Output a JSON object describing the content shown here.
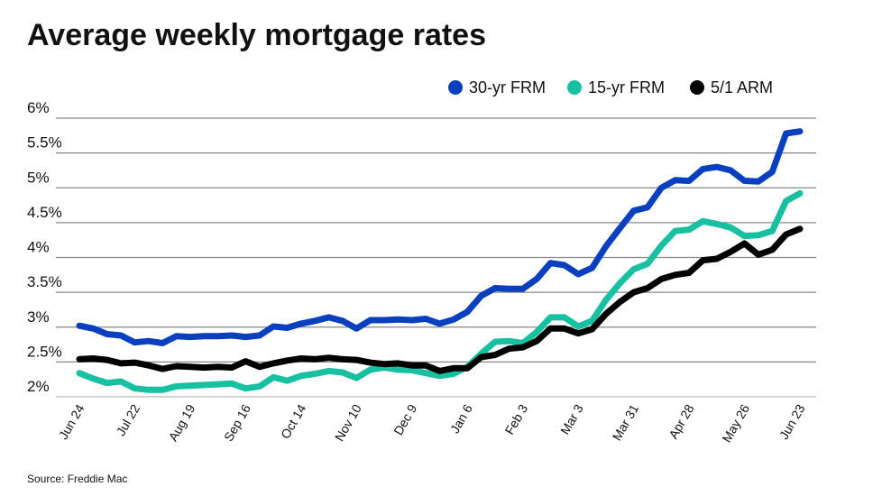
{
  "chart_data": {
    "type": "line",
    "title": "Average weekly mortgage rates",
    "source": "Source: Freddie Mac",
    "xlabel": "",
    "ylabel": "",
    "ylim": [
      2,
      6
    ],
    "yticks": [
      "2%",
      "2.5%",
      "3%",
      "3.5%",
      "4%",
      "4.5%",
      "5%",
      "5.5%",
      "6%"
    ],
    "xtick_labels": [
      "Jun 24",
      "Jul 22",
      "Aug 19",
      "Sep 16",
      "Oct 14",
      "Nov 10",
      "Dec 9",
      "Jan 6",
      "Feb 3",
      "Mar 3",
      "Mar 31",
      "Apr 28",
      "May 26",
      "Jun 23"
    ],
    "xtick_every_weeks": 4,
    "grid": true,
    "legend_position": "top-right",
    "series": [
      {
        "name": "30-yr FRM",
        "color": "#0a3fbf",
        "values": [
          3.02,
          2.98,
          2.9,
          2.88,
          2.78,
          2.8,
          2.77,
          2.87,
          2.86,
          2.87,
          2.87,
          2.88,
          2.86,
          2.88,
          3.01,
          2.99,
          3.05,
          3.09,
          3.14,
          3.09,
          2.98,
          3.1,
          3.1,
          3.11,
          3.1,
          3.12,
          3.05,
          3.11,
          3.22,
          3.45,
          3.56,
          3.55,
          3.55,
          3.69,
          3.92,
          3.89,
          3.76,
          3.85,
          4.16,
          4.42,
          4.67,
          4.72,
          5.0,
          5.11,
          5.1,
          5.27,
          5.3,
          5.25,
          5.1,
          5.09,
          5.23,
          5.78,
          5.81
        ]
      },
      {
        "name": "15-yr FRM",
        "color": "#17c0a0",
        "values": [
          2.34,
          2.26,
          2.2,
          2.22,
          2.12,
          2.1,
          2.1,
          2.15,
          2.16,
          2.17,
          2.18,
          2.19,
          2.12,
          2.15,
          2.28,
          2.23,
          2.3,
          2.33,
          2.37,
          2.35,
          2.27,
          2.39,
          2.42,
          2.39,
          2.38,
          2.34,
          2.3,
          2.33,
          2.43,
          2.62,
          2.79,
          2.8,
          2.77,
          2.93,
          3.14,
          3.14,
          3.01,
          3.09,
          3.39,
          3.63,
          3.83,
          3.91,
          4.17,
          4.38,
          4.4,
          4.52,
          4.48,
          4.43,
          4.31,
          4.32,
          4.38,
          4.81,
          4.92
        ]
      },
      {
        "name": "5/1 ARM",
        "color": "#000000",
        "values": [
          2.54,
          2.55,
          2.53,
          2.48,
          2.49,
          2.45,
          2.4,
          2.44,
          2.43,
          2.42,
          2.43,
          2.42,
          2.51,
          2.43,
          2.48,
          2.52,
          2.55,
          2.54,
          2.56,
          2.54,
          2.53,
          2.49,
          2.47,
          2.48,
          2.45,
          2.45,
          2.37,
          2.41,
          2.41,
          2.57,
          2.6,
          2.69,
          2.71,
          2.8,
          2.98,
          2.98,
          2.91,
          2.97,
          3.19,
          3.36,
          3.5,
          3.56,
          3.69,
          3.75,
          3.78,
          3.96,
          3.98,
          4.08,
          4.2,
          4.04,
          4.11,
          4.33,
          4.41
        ]
      }
    ]
  }
}
